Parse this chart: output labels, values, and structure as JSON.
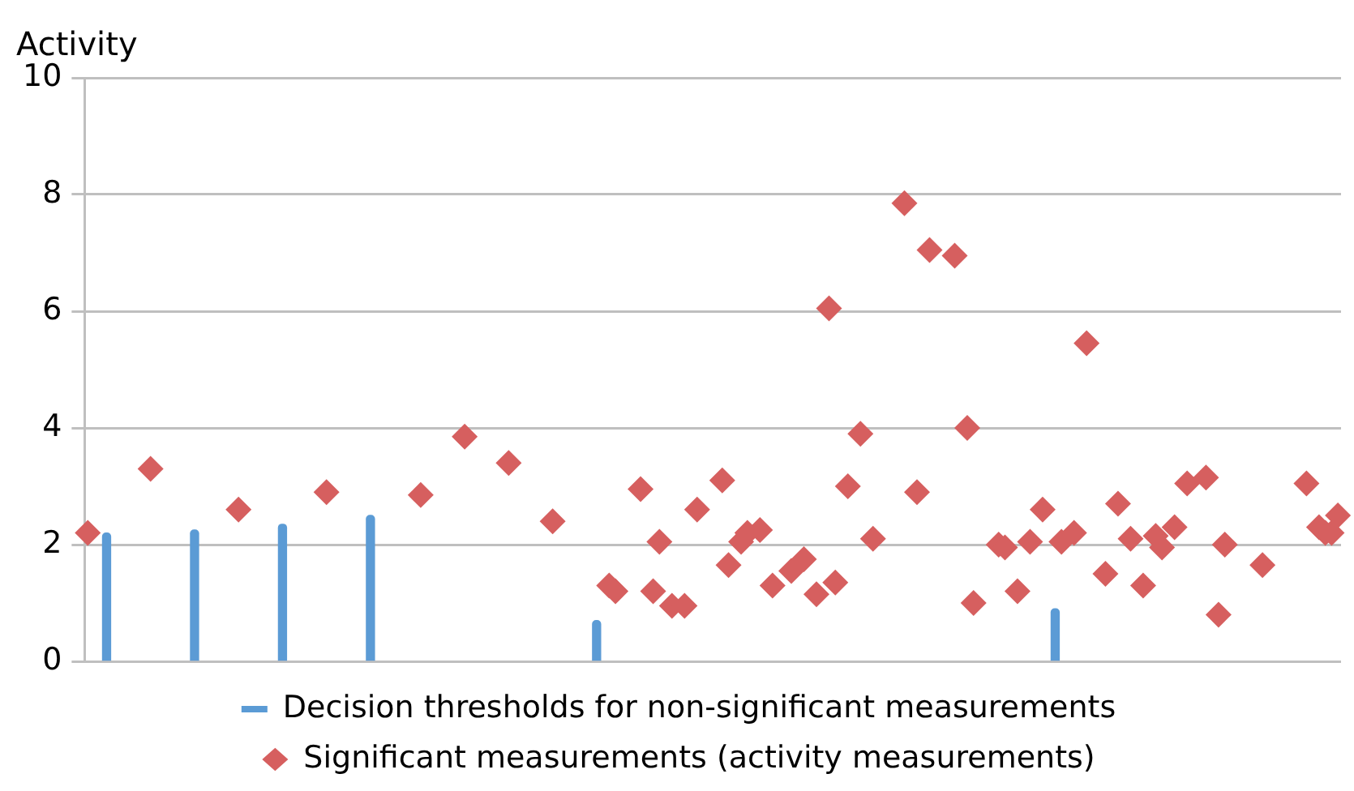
{
  "chart_data": {
    "type": "scatter",
    "ylabel": "Activity",
    "ylim": [
      0,
      10
    ],
    "yticks": [
      0,
      2,
      4,
      6,
      8,
      10
    ],
    "tick_labels": "y",
    "grid": "y",
    "legend": "bottom",
    "marker": "diamond",
    "categories": [
      null,
      null,
      null,
      null,
      null,
      null,
      null,
      null,
      null,
      null,
      null,
      null,
      null,
      null,
      null,
      null,
      null,
      null,
      null,
      null,
      null,
      null,
      null,
      null,
      null,
      null,
      null,
      null,
      null,
      null,
      null,
      null,
      null,
      null,
      null,
      null,
      null,
      null,
      null,
      null,
      null,
      null,
      null,
      null,
      null,
      null,
      null,
      null,
      null,
      null,
      null,
      null,
      null,
      null,
      null,
      null,
      null,
      null,
      null,
      null,
      null,
      null,
      null,
      null,
      null,
      null,
      null,
      null,
      null,
      null,
      null,
      null,
      null,
      null,
      null,
      null,
      null,
      null,
      null,
      null,
      null,
      null,
      null,
      null,
      null,
      null,
      null,
      null,
      null,
      null,
      null,
      null,
      null,
      null,
      null,
      null,
      null,
      null,
      null,
      null,
      null,
      null,
      null,
      null,
      null,
      null,
      null,
      null,
      null,
      null,
      null,
      null,
      null,
      null,
      null,
      null,
      null,
      null,
      null,
      null,
      null,
      null,
      null,
      null,
      null,
      null,
      null,
      null,
      null,
      null,
      null,
      null,
      null,
      null,
      null,
      null,
      null,
      null,
      null,
      null,
      null,
      null,
      null,
      null,
      null,
      null,
      null,
      null,
      null,
      null,
      null,
      null,
      null,
      null,
      null,
      null,
      null,
      null,
      null,
      null,
      null,
      null,
      null,
      null,
      null,
      null,
      null,
      null,
      null,
      null,
      null,
      null,
      null,
      null,
      null,
      null,
      null,
      null,
      null,
      null,
      null,
      null,
      null,
      null,
      null,
      null,
      null,
      null,
      null,
      null,
      null,
      null,
      null,
      null,
      null,
      null,
      null,
      null,
      null,
      null
    ],
    "series": [
      {
        "name": "Decision thresholds for non-significant measurements",
        "type": "bar",
        "color": "#5b9bd5",
        "values": [
          null,
          null,
          null,
          2.2,
          null,
          null,
          null,
          null,
          null,
          null,
          null,
          null,
          null,
          null,
          null,
          null,
          null,
          2.25,
          null,
          null,
          null,
          null,
          null,
          null,
          null,
          null,
          null,
          null,
          null,
          null,
          null,
          2.35,
          null,
          null,
          null,
          null,
          null,
          null,
          null,
          null,
          null,
          null,
          null,
          null,
          null,
          2.5,
          null,
          null,
          null,
          null,
          null,
          null,
          null,
          null,
          null,
          null,
          null,
          null,
          null,
          null,
          null,
          null,
          null,
          null,
          null,
          null,
          null,
          null,
          null,
          null,
          null,
          null,
          null,
          null,
          null,
          null,
          null,
          null,
          null,
          null,
          null,
          0.7,
          null,
          null,
          null,
          null,
          null,
          null,
          null,
          null,
          null,
          null,
          null,
          null,
          null,
          null,
          null,
          null,
          null,
          null,
          null,
          null,
          null,
          null,
          null,
          null,
          null,
          null,
          null,
          null,
          null,
          null,
          null,
          null,
          null,
          null,
          null,
          null,
          null,
          null,
          null,
          null,
          null,
          null,
          null,
          null,
          null,
          null,
          null,
          null,
          null,
          null,
          null,
          null,
          null,
          null,
          null,
          null,
          null,
          null,
          null,
          null,
          null,
          null,
          null,
          null,
          null,
          null,
          null,
          null,
          null,
          null,
          null,
          null,
          0.9,
          null,
          null,
          null,
          null,
          null,
          null,
          null,
          null,
          null,
          null,
          null,
          null,
          null,
          null,
          null,
          null,
          null,
          null,
          null,
          null,
          null,
          null,
          null,
          null,
          null,
          null,
          null,
          null,
          null,
          null,
          null,
          null,
          null,
          null,
          null,
          null,
          null,
          null,
          null,
          null,
          null,
          null,
          null,
          null,
          null
        ]
      },
      {
        "name": "Significant measurements (activity measurements)",
        "color": "#d65f5f",
        "values": [
          2.2,
          null,
          null,
          null,
          null,
          null,
          null,
          null,
          null,
          null,
          3.3,
          null,
          null,
          null,
          null,
          null,
          null,
          null,
          null,
          null,
          null,
          null,
          null,
          null,
          2.6,
          null,
          null,
          null,
          null,
          null,
          null,
          null,
          null,
          null,
          null,
          null,
          null,
          null,
          2.9,
          null,
          null,
          null,
          null,
          null,
          null,
          null,
          null,
          null,
          null,
          null,
          null,
          null,
          null,
          2.85,
          null,
          null,
          null,
          null,
          null,
          null,
          3.85,
          null,
          null,
          null,
          null,
          null,
          null,
          3.4,
          null,
          null,
          null,
          null,
          null,
          null,
          2.4,
          null,
          null,
          null,
          null,
          null,
          null,
          null,
          null,
          1.3,
          1.2,
          null,
          null,
          null,
          2.95,
          null,
          1.2,
          2.05,
          null,
          0.95,
          null,
          0.95,
          null,
          2.6,
          null,
          null,
          null,
          3.1,
          1.65,
          null,
          2.05,
          2.2,
          null,
          2.25,
          null,
          1.3,
          null,
          null,
          1.55,
          null,
          1.75,
          null,
          1.15,
          null,
          6.05,
          1.35,
          null,
          3.0,
          null,
          3.9,
          null,
          2.1,
          null,
          null,
          null,
          null,
          7.85,
          null,
          2.9,
          null,
          7.05,
          null,
          null,
          null,
          6.95,
          null,
          4.0,
          1.0,
          null,
          null,
          null,
          2.0,
          1.95,
          null,
          1.2,
          null,
          2.05,
          null,
          2.6,
          null,
          null,
          2.05,
          null,
          2.2,
          null,
          5.45,
          null,
          null,
          1.5,
          null,
          2.7,
          null,
          2.1,
          null,
          1.3,
          null,
          2.15,
          1.95,
          null,
          2.3,
          null,
          3.05,
          null,
          null,
          3.15,
          null,
          0.8,
          2.0,
          null,
          null,
          null,
          null,
          null,
          1.65,
          null,
          null,
          null,
          null,
          null,
          null,
          3.05,
          null,
          2.3,
          2.2,
          2.2,
          2.5
        ]
      }
    ]
  }
}
